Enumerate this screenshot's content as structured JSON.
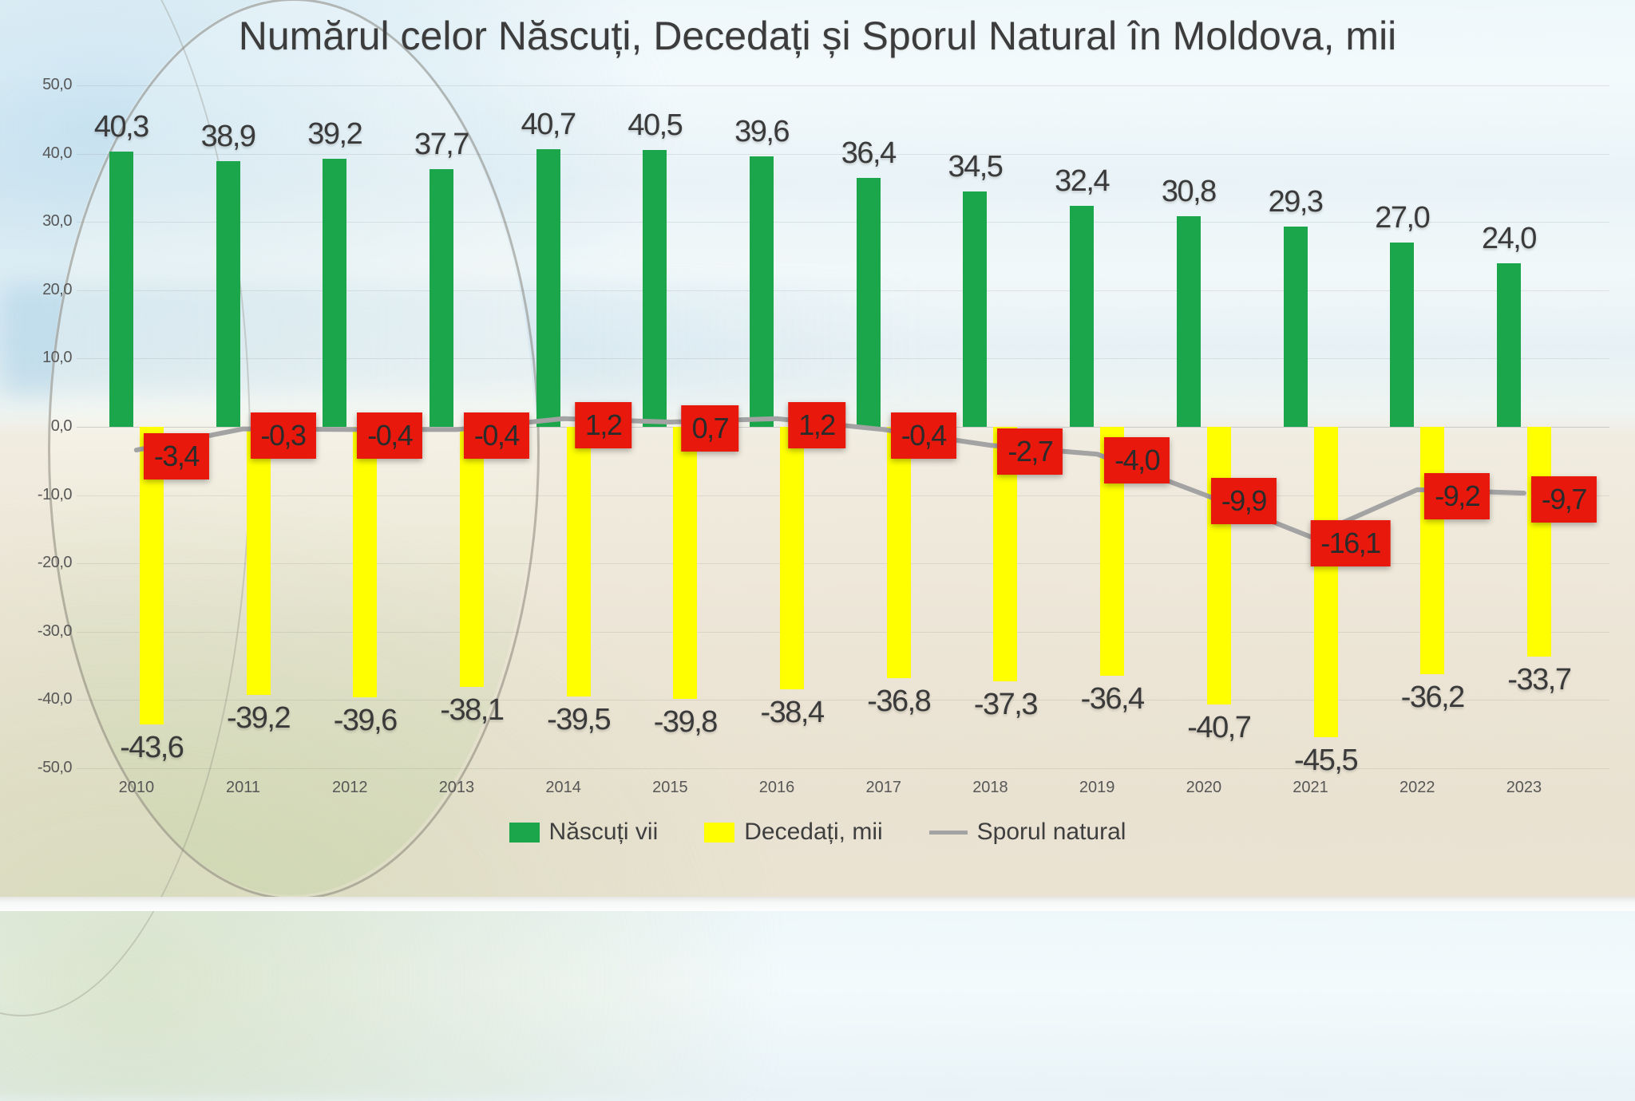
{
  "title": "Numărul celor Născuți, Decedați și Sporul Natural în Moldova, mii",
  "y_axis": {
    "ticks": [
      {
        "label": "50,0",
        "value": 50
      },
      {
        "label": "40,0",
        "value": 40
      },
      {
        "label": "30,0",
        "value": 30
      },
      {
        "label": "20,0",
        "value": 20
      },
      {
        "label": "10,0",
        "value": 10
      },
      {
        "label": "0,0",
        "value": 0
      },
      {
        "label": "-10,0",
        "value": -10
      },
      {
        "label": "-20,0",
        "value": -20
      },
      {
        "label": "-30,0",
        "value": -30
      },
      {
        "label": "-40,0",
        "value": -40
      },
      {
        "label": "-50,0",
        "value": -50
      }
    ]
  },
  "legend": [
    {
      "label": "Născuți vii",
      "color": "#1ca64c",
      "swatch": "square"
    },
    {
      "label": "Decedați, mii",
      "color": "#ffff00",
      "swatch": "square"
    },
    {
      "label": "Sporul natural",
      "color": "#a3a3a3",
      "swatch": "line"
    }
  ],
  "colors": {
    "born_green": "#1ca64c",
    "deaths_yellow": "#ffff00",
    "natural_label_bg": "#e8190c",
    "natural_line_gray": "#a3a3a3",
    "axis_text": "#575757",
    "label_text": "#3a3a3a"
  },
  "chart_data": {
    "type": "bar+line",
    "categories": [
      "2010",
      "2011",
      "2012",
      "2013",
      "2014",
      "2015",
      "2016",
      "2017",
      "2018",
      "2019",
      "2020",
      "2021",
      "2022",
      "2023"
    ],
    "series": [
      {
        "name": "Născuți vii",
        "type": "bar",
        "color": "#1ca64c",
        "values": [
          40.3,
          38.9,
          39.2,
          37.7,
          40.7,
          40.5,
          39.6,
          36.4,
          34.5,
          32.4,
          30.8,
          29.3,
          27.0,
          24.0
        ]
      },
      {
        "name": "Decedați, mii",
        "type": "bar",
        "color": "#ffff00",
        "values": [
          -43.6,
          -39.2,
          -39.6,
          -38.1,
          -39.5,
          -39.8,
          -38.4,
          -36.8,
          -37.3,
          -36.4,
          -40.7,
          -45.5,
          -36.2,
          -33.7
        ]
      },
      {
        "name": "Sporul natural",
        "type": "line",
        "color": "#a3a3a3",
        "values": [
          -3.4,
          -0.3,
          -0.4,
          -0.4,
          1.2,
          0.7,
          1.2,
          -0.4,
          -2.7,
          -4.0,
          -9.9,
          -16.1,
          -9.2,
          -9.7
        ]
      }
    ],
    "ylim": [
      -50,
      50
    ],
    "ytick_step": 10,
    "grid": true,
    "legend_position": "bottom",
    "decimal_separator": ",",
    "value_labels_shown": true
  }
}
